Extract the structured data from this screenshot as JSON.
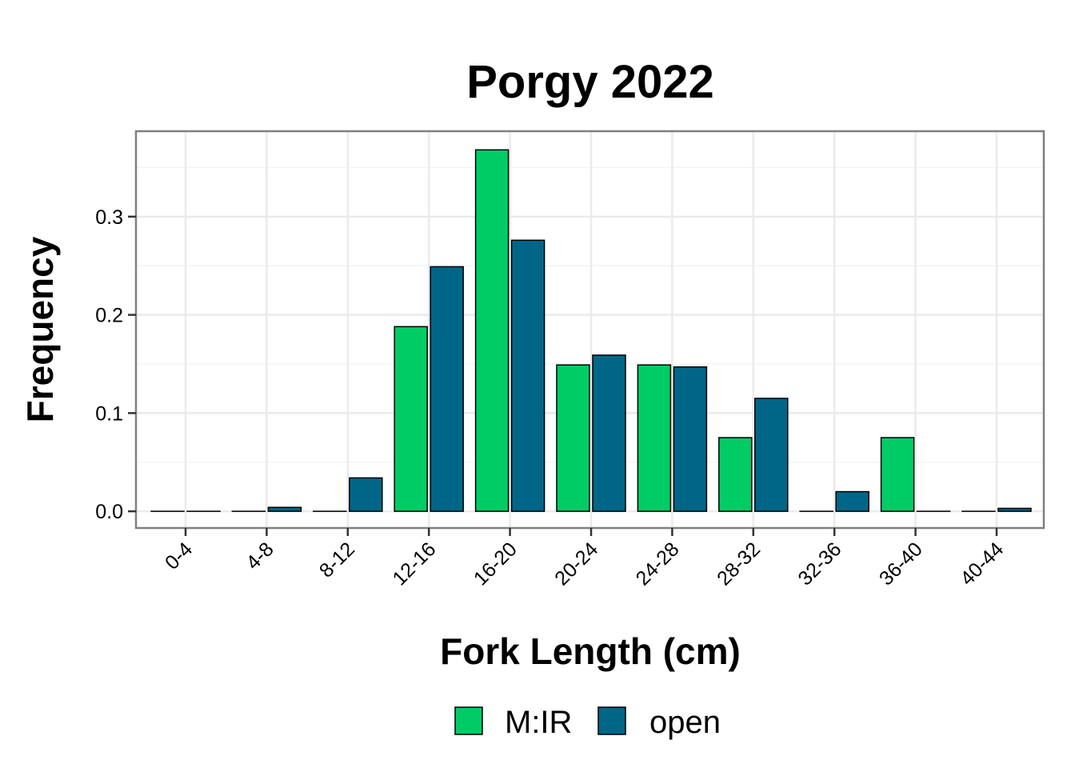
{
  "chart_data": {
    "type": "bar",
    "title": "Porgy 2022",
    "xlabel": "Fork Length (cm)",
    "ylabel": "Frequency",
    "categories": [
      "0-4",
      "4-8",
      "8-12",
      "12-16",
      "16-20",
      "20-24",
      "24-28",
      "28-32",
      "32-36",
      "36-40",
      "40-44"
    ],
    "series": [
      {
        "name": "M:IR",
        "color": "#00CC66",
        "values": [
          0,
          0,
          0,
          0.188,
          0.368,
          0.149,
          0.149,
          0.075,
          0,
          0.075,
          0
        ]
      },
      {
        "name": "open",
        "color": "#006688",
        "values": [
          0,
          0.004,
          0.034,
          0.249,
          0.276,
          0.159,
          0.147,
          0.115,
          0.02,
          0,
          0.003
        ]
      }
    ],
    "ylim": [
      -0.017,
      0.387
    ],
    "yticks": [
      0,
      0.1,
      0.2,
      0.3
    ],
    "ytick_labels": [
      "0.0",
      "0.1",
      "0.2",
      "0.3"
    ],
    "grid": true,
    "legend": "bottom"
  }
}
